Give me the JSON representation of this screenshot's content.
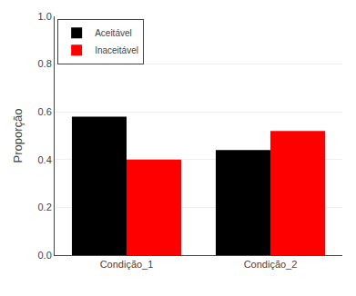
{
  "chart_data": {
    "type": "bar",
    "categories": [
      "Condição_1",
      "Condição_2"
    ],
    "series": [
      {
        "name": "Aceitável",
        "color": "#000000",
        "values": [
          0.58,
          0.44
        ]
      },
      {
        "name": "Inaceitável",
        "color": "#ff0000",
        "values": [
          0.4,
          0.52
        ]
      }
    ],
    "ylabel": "Proporção",
    "ylim": [
      0.0,
      1.0
    ],
    "yticks": [
      {
        "value": 0.0,
        "label": "0.0"
      },
      0.2,
      0.4,
      0.6,
      0.8,
      {
        "value": 1.0,
        "label": "1.0"
      }
    ],
    "grid": true,
    "legend": "upper left"
  }
}
